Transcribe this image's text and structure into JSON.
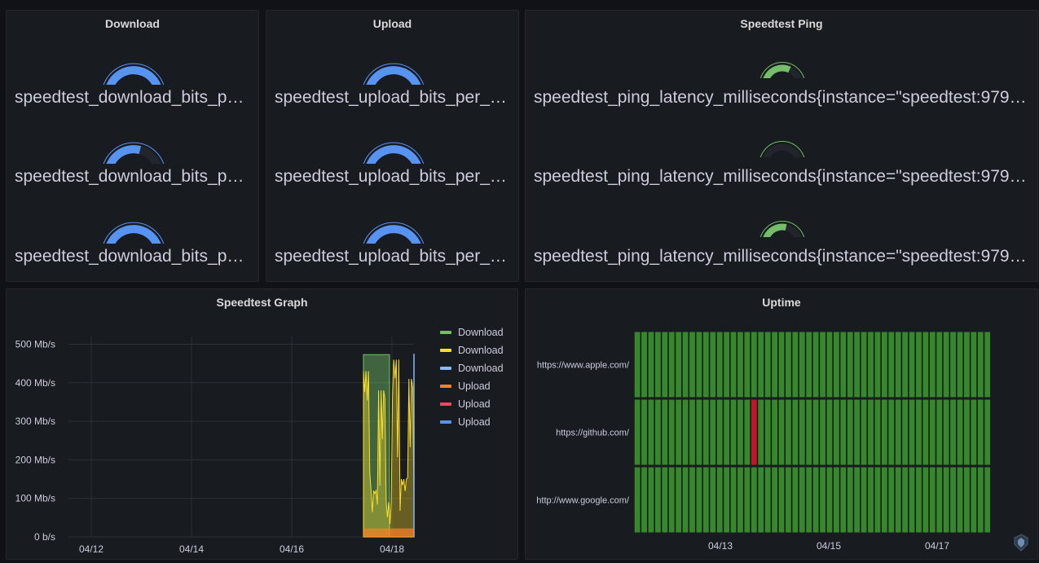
{
  "panels": {
    "download": {
      "title": "Download",
      "gauges": [
        {
          "value": "474 Mb/s",
          "fraction": 0.948,
          "label": "speedtest_download_bits_per_second{instance=\"speedtest:9798\", job=\"speedtest\"}"
        },
        {
          "value": "279 Mb/s",
          "fraction": 0.558,
          "label": "speedtest_download_bits_per_second{instance=\"speedtest:9798\", job=\"speedtest\"}"
        },
        {
          "value": "471 Mb/s",
          "fraction": 0.942,
          "label": "speedtest_download_bits_per_second{instance=\"speedtest:9798\", job=\"speedtest\"}"
        }
      ]
    },
    "upload": {
      "title": "Upload",
      "gauges": [
        {
          "value": "22.3 Mb/s",
          "fraction": 0.89,
          "label": "speedtest_upload_bits_per_second{instance=\"speedtest:9798\", job=\"speedtest\"}"
        },
        {
          "value": "22.5 Mb/s",
          "fraction": 0.9,
          "label": "speedtest_upload_bits_per_second{instance=\"speedtest:9798\", job=\"speedtest\"}"
        },
        {
          "value": "21.5 Mb/s",
          "fraction": 0.86,
          "label": "speedtest_upload_bits_per_second{instance=\"speedtest:9798\", job=\"speedtest\"}"
        }
      ]
    },
    "ping": {
      "title": "Speedtest Ping",
      "gauges": [
        {
          "value": "3.00 ms",
          "fraction": 0.6,
          "label": "speedtest_ping_latency_milliseconds{instance=\"speedtest:9798\", job=\"speedtest\"}"
        },
        {
          "value": "4.66 ms",
          "fraction": 0.08,
          "label": "speedtest_ping_latency_milliseconds{instance=\"speedtest:9798\", job=\"speedtest\"}"
        },
        {
          "value": "3.84 ms",
          "fraction": 0.55,
          "label": "speedtest_ping_latency_milliseconds{instance=\"speedtest:9798\", job=\"speedtest\"}"
        }
      ]
    },
    "graph": {
      "title": "Speedtest Graph"
    },
    "uptime": {
      "title": "Uptime"
    }
  },
  "colors": {
    "gauge_blue": "#5794f2",
    "gauge_green": "#73bf69",
    "download_green": "#73bf69",
    "download_yellow": "#fade2a",
    "download_blue": "#8ab8ff",
    "upload_orange": "#ff7f2a",
    "upload_red": "#f2495c",
    "upload_blue": "#5794f2",
    "uptime_up": "#37872d",
    "uptime_down": "#c4162a"
  },
  "chart_data": [
    {
      "type": "area",
      "title": "Speedtest Graph",
      "x_ticks": [
        "04/12",
        "04/14",
        "04/16",
        "04/18"
      ],
      "y_ticks": [
        "0 b/s",
        "100 Mb/s",
        "200 Mb/s",
        "300 Mb/s",
        "400 Mb/s",
        "500 Mb/s"
      ],
      "ylim": [
        0,
        520
      ],
      "legend_position": "right",
      "grid": true,
      "series": [
        {
          "name": "Download",
          "color": "#73bf69",
          "values": [
            473,
            473,
            473,
            473,
            473,
            473,
            473,
            473
          ]
        },
        {
          "name": "Download",
          "color": "#fade2a",
          "values": [
            430,
            120,
            380,
            90,
            460,
            150,
            410,
            100
          ]
        },
        {
          "name": "Download",
          "color": "#8ab8ff",
          "values": [
            0,
            0,
            0,
            0,
            0,
            0,
            0,
            475
          ]
        },
        {
          "name": "Upload",
          "color": "#ff7f2a",
          "values": [
            22,
            22,
            22,
            22,
            22,
            22,
            22,
            22
          ]
        },
        {
          "name": "Upload",
          "color": "#f2495c",
          "values": [
            0,
            0,
            0,
            0,
            0,
            0,
            0,
            0
          ]
        },
        {
          "name": "Upload",
          "color": "#5794f2",
          "values": [
            0,
            0,
            0,
            0,
            0,
            0,
            0,
            0
          ]
        }
      ]
    },
    {
      "type": "heatmap",
      "title": "Uptime",
      "rows": [
        "https://www.apple.com/",
        "https://github.com/",
        "http://www.google.com/"
      ],
      "x_ticks": [
        "04/13",
        "04/15",
        "04/17"
      ],
      "columns": 52,
      "down": [
        {
          "row": 1,
          "col": 17
        }
      ]
    }
  ]
}
